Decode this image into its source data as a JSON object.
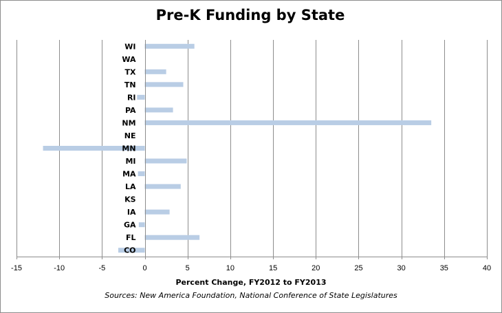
{
  "chart_data": {
    "type": "bar",
    "orientation": "horizontal",
    "title": "Pre-K Funding by State",
    "xlabel": "Percent Change, FY2012  to FY2013",
    "source": "Sources: New America Foundation,  National Conference of State Legislatures",
    "xlim": [
      -15,
      40
    ],
    "xticks": [
      -15,
      -10,
      -5,
      0,
      5,
      10,
      15,
      20,
      25,
      30,
      35,
      40
    ],
    "grid": "vertical",
    "bar_color": "#b9cde5",
    "categories": [
      "WI",
      "WA",
      "TX",
      "TN",
      "RI",
      "PA",
      "NM",
      "NE",
      "MN",
      "MI",
      "MA",
      "LA",
      "KS",
      "IA",
      "GA",
      "FL",
      "CO"
    ],
    "values": [
      5.8,
      0,
      2.5,
      4.5,
      -0.9,
      3.3,
      33.5,
      0,
      -11.9,
      4.9,
      -0.8,
      4.2,
      0,
      2.9,
      -0.7,
      6.4,
      -3.1
    ]
  }
}
